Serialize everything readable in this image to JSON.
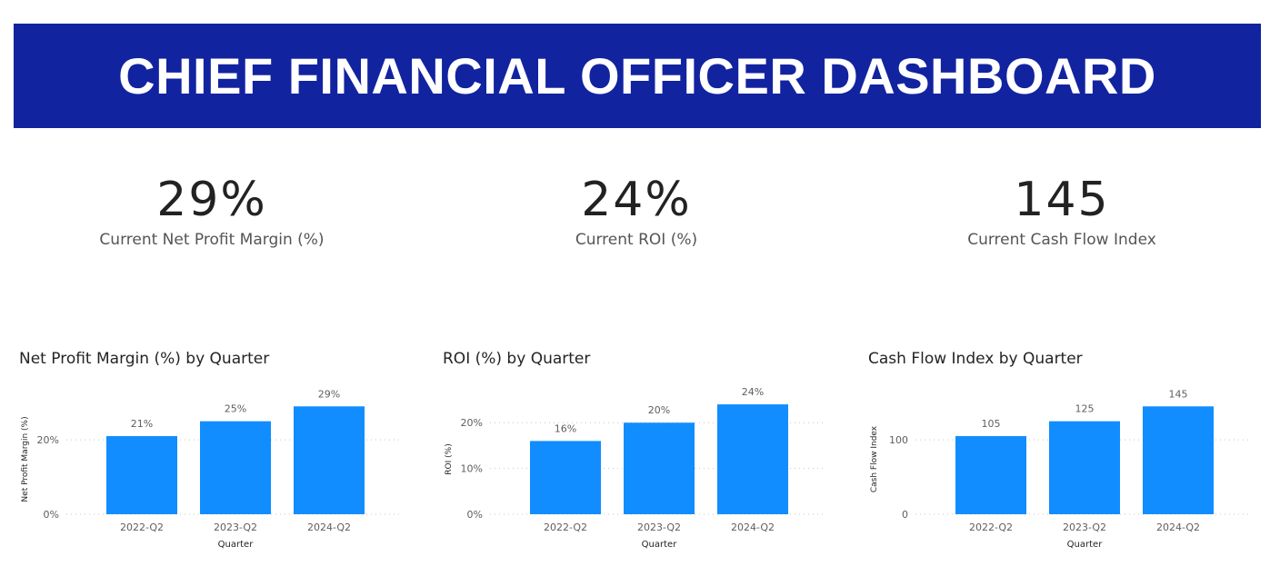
{
  "header": {
    "title": "CHIEF FINANCIAL OFFICER DASHBOARD"
  },
  "kpis": [
    {
      "value": "29%",
      "label": "Current Net Profit Margin (%)"
    },
    {
      "value": "24%",
      "label": "Current ROI (%)"
    },
    {
      "value": "145",
      "label": "Current Cash Flow Index"
    }
  ],
  "colors": {
    "banner": "#1223a0",
    "bar": "#118dff",
    "grid": "#c8c6c4"
  },
  "chart_data": [
    {
      "type": "bar",
      "title": "Net Profit Margin (%) by Quarter",
      "xlabel": "Quarter",
      "ylabel": "Net Profit Margin (%)",
      "categories": [
        "2022-Q2",
        "2023-Q2",
        "2024-Q2"
      ],
      "values": [
        21,
        25,
        29
      ],
      "data_labels": [
        "21%",
        "25%",
        "29%"
      ],
      "ylim": [
        0,
        32
      ],
      "yticks": [
        0,
        20
      ],
      "ytick_labels": [
        "0%",
        "20%"
      ],
      "grid": true
    },
    {
      "type": "bar",
      "title": "ROI (%) by Quarter",
      "xlabel": "Quarter",
      "ylabel": "ROI (%)",
      "categories": [
        "2022-Q2",
        "2023-Q2",
        "2024-Q2"
      ],
      "values": [
        16,
        20,
        24
      ],
      "data_labels": [
        "16%",
        "20%",
        "24%"
      ],
      "ylim": [
        0,
        26
      ],
      "yticks": [
        0,
        10,
        20
      ],
      "ytick_labels": [
        "0%",
        "10%",
        "20%"
      ],
      "grid": true
    },
    {
      "type": "bar",
      "title": "Cash Flow Index by Quarter",
      "xlabel": "Quarter",
      "ylabel": "Cash Flow Index",
      "categories": [
        "2022-Q2",
        "2023-Q2",
        "2024-Q2"
      ],
      "values": [
        105,
        125,
        145
      ],
      "data_labels": [
        "105",
        "125",
        "145"
      ],
      "ylim": [
        0,
        160
      ],
      "yticks": [
        0,
        100
      ],
      "ytick_labels": [
        "0",
        "100"
      ],
      "grid": true
    }
  ]
}
